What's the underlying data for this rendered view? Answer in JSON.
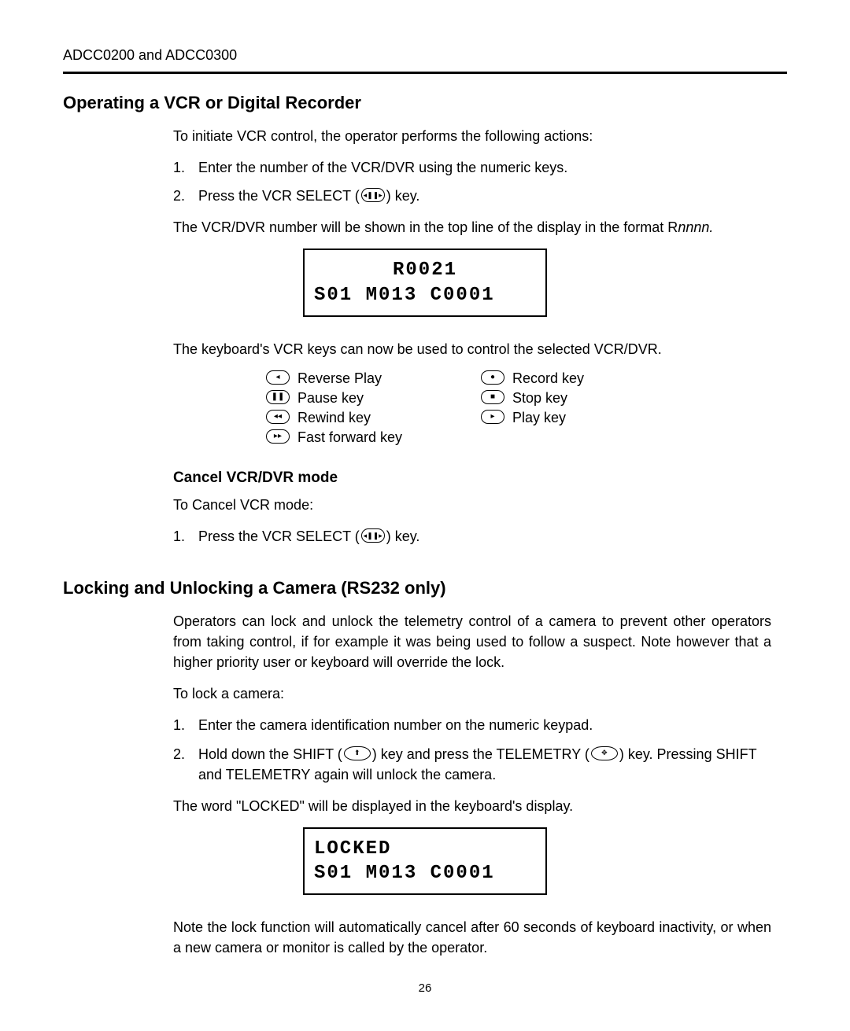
{
  "header": {
    "doc_ref": "ADCC0200 and ADCC0300"
  },
  "section1": {
    "title": "Operating a VCR or Digital Recorder",
    "intro": "To initiate VCR control, the operator performs the following actions:",
    "step1": "Enter the number of the VCR/DVR using the numeric keys.",
    "step2_pre": "Press the VCR SELECT (",
    "step2_post": ") key.",
    "after_steps_pre": "The VCR/DVR number will be shown in the top line of the display in the format R",
    "after_steps_ital": "nnnn.",
    "lcd": {
      "line1": "R0021",
      "line2": "S01 M013 C0001"
    },
    "after_lcd": "The keyboard's VCR keys can now be used to control the selected VCR/DVR.",
    "keys_left": [
      {
        "icon": "◂",
        "label": "Reverse Play"
      },
      {
        "icon": "❚❚",
        "label": "Pause key"
      },
      {
        "icon": "◂◂",
        "label": "Rewind key"
      },
      {
        "icon": "▸▸",
        "label": "Fast forward key"
      }
    ],
    "keys_right": [
      {
        "icon": "●",
        "label": "Record key"
      },
      {
        "icon": "■",
        "label": "Stop key"
      },
      {
        "icon": "▸",
        "label": "Play key"
      }
    ],
    "cancel": {
      "title": "Cancel VCR/DVR mode",
      "intro": "To Cancel VCR mode:",
      "step1_pre": "Press the VCR SELECT (",
      "step1_post": ") key."
    }
  },
  "section2": {
    "title": "Locking and Unlocking a Camera (RS232 only)",
    "intro": "Operators can lock and unlock the telemetry control of a camera to prevent other operators from taking control, if for example it was being used to follow a suspect. Note however that a higher priority user or keyboard will override the lock.",
    "to_lock": "To lock a camera:",
    "step1": "Enter the camera identification number on the numeric keypad.",
    "step2_a": "Hold down the SHIFT (",
    "step2_b": ") key and press the TELEMETRY (",
    "step2_c": ") key. Pressing SHIFT and TELEMETRY again will unlock the camera.",
    "after_steps": "The word \"LOCKED\" will be displayed in the keyboard's display.",
    "lcd": {
      "line1": "LOCKED",
      "line2": "S01 M013 C0001"
    },
    "after_lcd": "Note the lock function will automatically cancel after 60 seconds of keyboard inactivity, or when a new camera or monitor is called by the operator."
  },
  "page_number": "26",
  "icons": {
    "vcr_select": "◂❚❚▸",
    "shift": "⬆",
    "telemetry": "✥"
  }
}
